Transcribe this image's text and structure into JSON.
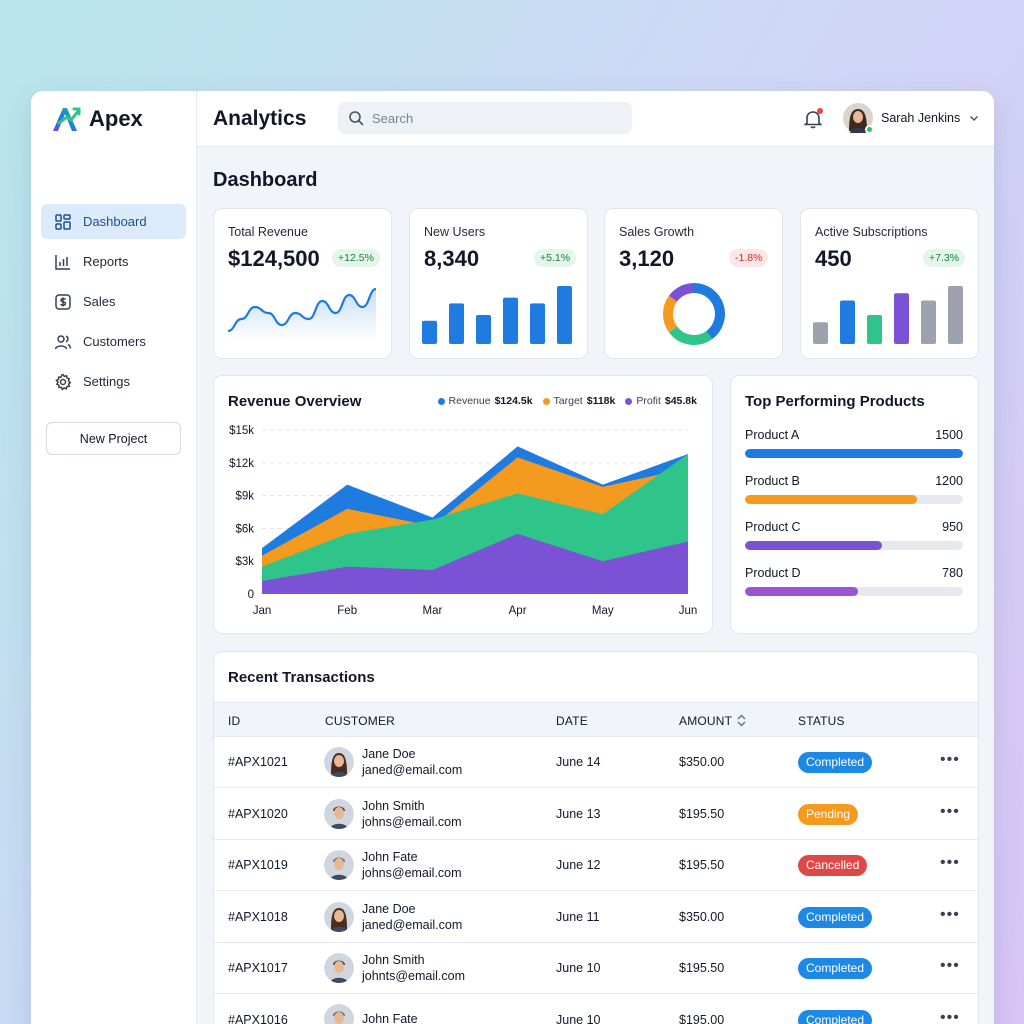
{
  "brand": {
    "name": "Apex",
    "logo_icon": "apex-logo-icon"
  },
  "sidebar": {
    "items": [
      {
        "label": "Dashboard",
        "icon": "grid-icon",
        "active": true
      },
      {
        "label": "Reports",
        "icon": "bar-chart-icon",
        "active": false
      },
      {
        "label": "Sales",
        "icon": "dollar-icon",
        "active": false
      },
      {
        "label": "Customers",
        "icon": "users-icon",
        "active": false
      },
      {
        "label": "Settings",
        "icon": "gear-icon",
        "active": false
      }
    ],
    "new_project_label": "New Project"
  },
  "header": {
    "title": "Analytics",
    "search_placeholder": "Search",
    "user_name": "Sarah Jenkins"
  },
  "page": {
    "title": "Dashboard"
  },
  "kpis": [
    {
      "title": "Total Revenue",
      "value": "$124,500",
      "change": "+12.5%",
      "trend": "up",
      "mini_chart": "line"
    },
    {
      "title": "New Users",
      "value": "8,340",
      "change": "+5.1%",
      "trend": "up",
      "mini_chart": "bar"
    },
    {
      "title": "Sales Growth",
      "value": "3,120",
      "change": "-1.8%",
      "trend": "down",
      "mini_chart": "donut"
    },
    {
      "title": "Active Subscriptions",
      "value": "450",
      "change": "+7.3%",
      "trend": "up",
      "mini_chart": "bar"
    }
  ],
  "revenue_overview": {
    "title": "Revenue Overview",
    "legend": [
      {
        "name": "Revenue",
        "value": "$124.5k",
        "color": "#1e7be0"
      },
      {
        "name": "Target",
        "value": "$118k",
        "color": "#f39a1f"
      },
      {
        "name": "Profit",
        "value": "$45.8k",
        "color": "#7b52d6"
      }
    ]
  },
  "top_products": {
    "title": "Top Performing Products",
    "items": [
      {
        "name": "Product A",
        "value": "1500",
        "fraction": 1.0,
        "color": "#1e7be0"
      },
      {
        "name": "Product B",
        "value": "1200",
        "fraction": 0.79,
        "color": "#f39a1f"
      },
      {
        "name": "Product C",
        "value": "950",
        "fraction": 0.63,
        "color": "#7b52d6"
      },
      {
        "name": "Product D",
        "value": "780",
        "fraction": 0.52,
        "color": "#9b55d4"
      }
    ]
  },
  "transactions": {
    "title": "Recent Transactions",
    "columns": [
      "ID",
      "CUSTOMER",
      "DATE",
      "AMOUNT",
      "STATUS"
    ],
    "rows": [
      {
        "id": "#APX1021",
        "name": "Jane Doe",
        "email": "janed@email.com",
        "date": "June 14",
        "amount": "$350.00",
        "status": "Completed"
      },
      {
        "id": "#APX1020",
        "name": "John Smith",
        "email": "johns@email.com",
        "date": "June 13",
        "amount": "$195.50",
        "status": "Pending"
      },
      {
        "id": "#APX1019",
        "name": "John Fate",
        "email": "johns@email.com",
        "date": "June 12",
        "amount": "$195.50",
        "status": "Cancelled"
      },
      {
        "id": "#APX1018",
        "name": "Jane Doe",
        "email": "janed@email.com",
        "date": "June 11",
        "amount": "$350.00",
        "status": "Completed"
      },
      {
        "id": "#APX1017",
        "name": "John Smith",
        "email": "johnts@email.com",
        "date": "June 10",
        "amount": "$195.50",
        "status": "Completed"
      },
      {
        "id": "#APX1016",
        "name": "John Fate",
        "email": "",
        "date": "June 10",
        "amount": "$195.00",
        "status": "Completed"
      }
    ],
    "status_colors": {
      "Completed": "#1e88e5",
      "Pending": "#f39a1f",
      "Cancelled": "#e04848"
    }
  },
  "chart_data": [
    {
      "type": "line",
      "title": "Total Revenue",
      "x": [
        1,
        2,
        3,
        4,
        5,
        6,
        7,
        8,
        9,
        10,
        11,
        12
      ],
      "values": [
        2,
        4,
        6,
        5,
        3,
        5,
        4,
        7,
        5,
        8,
        6,
        9
      ]
    },
    {
      "type": "bar",
      "title": "New Users",
      "values": [
        4,
        7,
        5,
        8,
        7,
        10
      ]
    },
    {
      "type": "pie",
      "title": "Sales Growth",
      "values": [
        40,
        25,
        20,
        15
      ],
      "colors": [
        "#1e7be0",
        "#2fc48a",
        "#f39a1f",
        "#7b52d6"
      ]
    },
    {
      "type": "bar",
      "title": "Active Subscriptions",
      "values": [
        3,
        6,
        4,
        7,
        6,
        8
      ],
      "colors": [
        "#9ca3af",
        "#1e7be0",
        "#2fc48a",
        "#7b52d6",
        "#9ca3af",
        "#9ca3af"
      ]
    },
    {
      "type": "area",
      "title": "Revenue Overview",
      "categories": [
        "Jan",
        "Feb",
        "Mar",
        "Apr",
        "May",
        "Jun"
      ],
      "y_ticks": [
        "0",
        "$3k",
        "$6k",
        "$9k",
        "$12k",
        "$15k"
      ],
      "ylim": [
        0,
        15
      ],
      "series": [
        {
          "name": "Revenue",
          "color": "#1e7be0",
          "values": [
            4.2,
            10,
            7,
            13.5,
            10,
            12.8
          ]
        },
        {
          "name": "Target",
          "color": "#f39a1f",
          "values": [
            3.5,
            7.8,
            6.2,
            12.5,
            9.8,
            11.5
          ]
        },
        {
          "name": "",
          "color": "#2fc48a",
          "values": [
            2.5,
            5.5,
            6.8,
            9.2,
            7.3,
            12.8
          ]
        },
        {
          "name": "Profit",
          "color": "#7b52d6",
          "values": [
            1.2,
            2.5,
            2.2,
            5.5,
            3,
            4.8
          ]
        }
      ]
    }
  ]
}
